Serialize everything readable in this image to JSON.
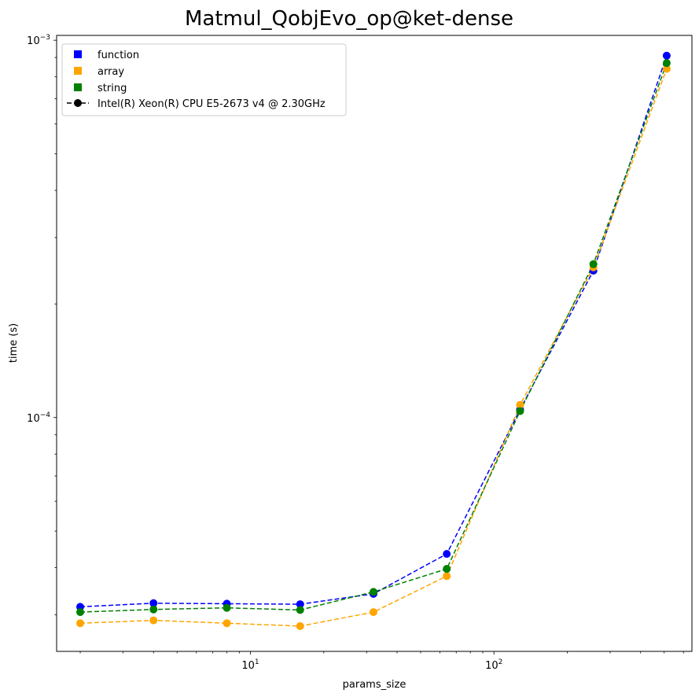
{
  "chart_data": {
    "type": "line",
    "title": "Matmul_QobjEvo_op@ket-dense",
    "xlabel": "params_size",
    "ylabel": "time (s)",
    "xscale": "log",
    "yscale": "log",
    "xlim": [
      1.6,
      650
    ],
    "ylim": [
      2.4e-05,
      0.00103
    ],
    "x_ticks": [
      {
        "value": 10,
        "base": "10",
        "exp": "1"
      },
      {
        "value": 100,
        "base": "10",
        "exp": "2"
      }
    ],
    "y_ticks": [
      {
        "value": 0.0001,
        "base": "10",
        "exp": "−4"
      },
      {
        "value": 0.001,
        "base": "10",
        "exp": "−3"
      }
    ],
    "x": [
      2,
      4,
      8,
      16,
      32,
      64,
      128,
      256,
      512
    ],
    "series": [
      {
        "name": "function",
        "color": "#0000ff",
        "values": [
          3.15e-05,
          3.22e-05,
          3.21e-05,
          3.2e-05,
          3.41e-05,
          4.35e-05,
          0.000105,
          0.000245,
          0.00091
        ]
      },
      {
        "name": "array",
        "color": "#ffa500",
        "values": [
          2.85e-05,
          2.9e-05,
          2.85e-05,
          2.8e-05,
          3.05e-05,
          3.8e-05,
          0.000108,
          0.00025,
          0.00084
        ]
      },
      {
        "name": "string",
        "color": "#008000",
        "values": [
          3.05e-05,
          3.1e-05,
          3.13e-05,
          3.09e-05,
          3.45e-05,
          3.97e-05,
          0.000104,
          0.000255,
          0.00087
        ]
      }
    ],
    "legend": {
      "placement": "top-left",
      "entries": [
        "function",
        "array",
        "string"
      ],
      "machine_label": "Intel(R) Xeon(R) CPU E5-2673 v4 @ 2.30GHz",
      "machine_color": "#000000"
    },
    "grid": false,
    "line_style": "dashed",
    "marker": "circle"
  }
}
